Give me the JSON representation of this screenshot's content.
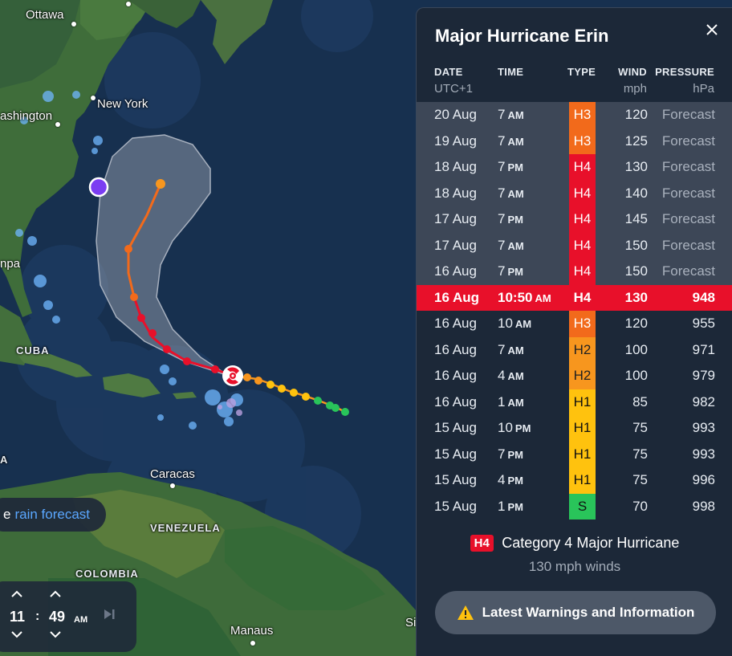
{
  "map": {
    "labels": {
      "ottawa": "Ottawa",
      "new_york": "New York",
      "washington": "ashington",
      "tampa": "npa",
      "cuba": "CUBA",
      "caracas": "Caracas",
      "venezuela": "VENEZUELA",
      "colombia": "COLOMBIA",
      "manaus": "Manaus",
      "left_a": "A",
      "right_edge": "Si"
    },
    "rain_pill": {
      "prefix": "e",
      "link": "rain forecast"
    },
    "time_control": {
      "hour": "11",
      "colon": ":",
      "minute": "49",
      "ampm": "AM"
    }
  },
  "storm": {
    "title": "Major Hurricane Erin",
    "columns": {
      "date": "DATE",
      "date_sub": "UTC+1",
      "time": "TIME",
      "type": "TYPE",
      "wind": "WIND",
      "wind_sub": "mph",
      "pressure": "PRESSURE",
      "pressure_sub": "hPa"
    },
    "rows": [
      {
        "date": "20 Aug",
        "time": "7",
        "ampm": "AM",
        "type": "H3",
        "wind": "120",
        "pressure": "Forecast",
        "state": "forecast"
      },
      {
        "date": "19 Aug",
        "time": "7",
        "ampm": "AM",
        "type": "H3",
        "wind": "125",
        "pressure": "Forecast",
        "state": "forecast"
      },
      {
        "date": "18 Aug",
        "time": "7",
        "ampm": "PM",
        "type": "H4",
        "wind": "130",
        "pressure": "Forecast",
        "state": "forecast"
      },
      {
        "date": "18 Aug",
        "time": "7",
        "ampm": "AM",
        "type": "H4",
        "wind": "140",
        "pressure": "Forecast",
        "state": "forecast"
      },
      {
        "date": "17 Aug",
        "time": "7",
        "ampm": "PM",
        "type": "H4",
        "wind": "145",
        "pressure": "Forecast",
        "state": "forecast"
      },
      {
        "date": "17 Aug",
        "time": "7",
        "ampm": "AM",
        "type": "H4",
        "wind": "150",
        "pressure": "Forecast",
        "state": "forecast"
      },
      {
        "date": "16 Aug",
        "time": "7",
        "ampm": "PM",
        "type": "H4",
        "wind": "150",
        "pressure": "Forecast",
        "state": "forecast"
      },
      {
        "date": "16 Aug",
        "time": "10:50",
        "ampm": "AM",
        "type": "H4",
        "wind": "130",
        "pressure": "948",
        "state": "current"
      },
      {
        "date": "16 Aug",
        "time": "10",
        "ampm": "AM",
        "type": "H3",
        "wind": "120",
        "pressure": "955",
        "state": "past"
      },
      {
        "date": "16 Aug",
        "time": "7",
        "ampm": "AM",
        "type": "H2",
        "wind": "100",
        "pressure": "971",
        "state": "past"
      },
      {
        "date": "16 Aug",
        "time": "4",
        "ampm": "AM",
        "type": "H2",
        "wind": "100",
        "pressure": "979",
        "state": "past"
      },
      {
        "date": "16 Aug",
        "time": "1",
        "ampm": "AM",
        "type": "H1",
        "wind": "85",
        "pressure": "982",
        "state": "past"
      },
      {
        "date": "15 Aug",
        "time": "10",
        "ampm": "PM",
        "type": "H1",
        "wind": "75",
        "pressure": "993",
        "state": "past"
      },
      {
        "date": "15 Aug",
        "time": "7",
        "ampm": "PM",
        "type": "H1",
        "wind": "75",
        "pressure": "993",
        "state": "past"
      },
      {
        "date": "15 Aug",
        "time": "4",
        "ampm": "PM",
        "type": "H1",
        "wind": "75",
        "pressure": "996",
        "state": "past"
      },
      {
        "date": "15 Aug",
        "time": "1",
        "ampm": "PM",
        "type": "S",
        "wind": "70",
        "pressure": "998",
        "state": "past"
      }
    ],
    "type_colors": {
      "H4": "#e8102a",
      "H3": "#f26a1b",
      "H2": "#f7961e",
      "H1": "#ffc20e",
      "S": "#29c45a"
    },
    "legend": {
      "badge": "H4",
      "label": "Category 4 Major Hurricane",
      "sub": "130 mph winds"
    },
    "warning_button": "Latest Warnings and Information"
  },
  "icons": [
    "close-icon",
    "warning-triangle-icon",
    "chevron-up-icon",
    "chevron-down-icon",
    "play-icon",
    "hurricane-icon"
  ]
}
